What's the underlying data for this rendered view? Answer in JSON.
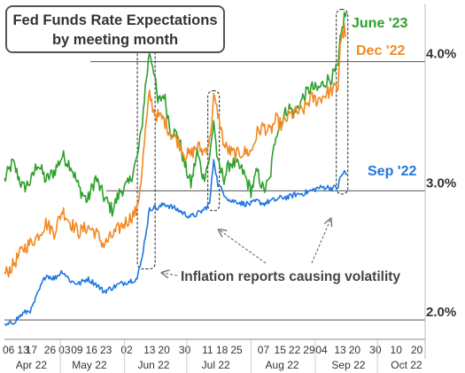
{
  "chart_data": {
    "type": "line",
    "title": "Fed Funds Rate Expectations",
    "subtitle": "by meeting month",
    "annotation": "Inflation reports causing volatility",
    "yticks": [
      "2.0%",
      "3.0%",
      "4.0%"
    ],
    "ylim": [
      1.85,
      4.45
    ],
    "xlim": [
      "2022-04-04",
      "2022-10-24"
    ],
    "x_tick_days": [
      "06",
      "13",
      "17",
      "26",
      "03",
      "09",
      "16",
      "23",
      "02",
      "13",
      "20",
      "30",
      "11",
      "18",
      "25",
      "07",
      "15",
      "22",
      "29",
      "04",
      "13",
      "20",
      "30",
      "10",
      "20"
    ],
    "x_tick_dates": [
      "2022-04-06",
      "2022-04-13",
      "2022-04-17",
      "2022-04-26",
      "2022-05-03",
      "2022-05-09",
      "2022-05-16",
      "2022-05-23",
      "2022-06-02",
      "2022-06-13",
      "2022-06-20",
      "2022-06-30",
      "2022-07-11",
      "2022-07-18",
      "2022-07-25",
      "2022-08-07",
      "2022-08-15",
      "2022-08-22",
      "2022-08-29",
      "2022-09-04",
      "2022-09-13",
      "2022-09-20",
      "2022-09-30",
      "2022-10-10",
      "2022-10-20"
    ],
    "month_labels": [
      "Apr 22",
      "May 22",
      "Jun 22",
      "Jul 22",
      "Aug 22",
      "Sep 22",
      "Oct 22"
    ],
    "month_label_dates": [
      "2022-04-17",
      "2022-05-15",
      "2022-06-15",
      "2022-07-15",
      "2022-08-16",
      "2022-09-17",
      "2022-10-15"
    ],
    "highlight_periods": [
      [
        "2022-06-08",
        "2022-06-14"
      ],
      [
        "2022-07-12",
        "2022-07-15"
      ],
      [
        "2022-09-12",
        "2022-09-15"
      ]
    ],
    "colors": {
      "grid": "#555555",
      "axis": "#888888",
      "tick": "#333333"
    },
    "series": [
      {
        "name": "June '23",
        "color": "#2ca02c",
        "points": [
          [
            "2022-04-04",
            3.08
          ],
          [
            "2022-04-08",
            3.22
          ],
          [
            "2022-04-13",
            3.02
          ],
          [
            "2022-04-17",
            3.08
          ],
          [
            "2022-04-20",
            3.22
          ],
          [
            "2022-04-24",
            3.08
          ],
          [
            "2022-04-28",
            3.15
          ],
          [
            "2022-05-02",
            3.27
          ],
          [
            "2022-05-06",
            3.2
          ],
          [
            "2022-05-10",
            3.02
          ],
          [
            "2022-05-14",
            2.92
          ],
          [
            "2022-05-18",
            3.1
          ],
          [
            "2022-05-22",
            2.95
          ],
          [
            "2022-05-26",
            2.85
          ],
          [
            "2022-05-30",
            3.0
          ],
          [
            "2022-06-03",
            3.05
          ],
          [
            "2022-06-07",
            3.25
          ],
          [
            "2022-06-09",
            3.45
          ],
          [
            "2022-06-11",
            3.8
          ],
          [
            "2022-06-13",
            4.08
          ],
          [
            "2022-06-15",
            3.95
          ],
          [
            "2022-06-17",
            3.68
          ],
          [
            "2022-06-20",
            3.75
          ],
          [
            "2022-06-23",
            3.48
          ],
          [
            "2022-06-27",
            3.42
          ],
          [
            "2022-06-30",
            3.2
          ],
          [
            "2022-07-03",
            3.05
          ],
          [
            "2022-07-06",
            3.3
          ],
          [
            "2022-07-09",
            3.1
          ],
          [
            "2022-07-12",
            3.25
          ],
          [
            "2022-07-14",
            3.55
          ],
          [
            "2022-07-16",
            3.2
          ],
          [
            "2022-07-19",
            3.1
          ],
          [
            "2022-07-22",
            3.22
          ],
          [
            "2022-07-25",
            3.2
          ],
          [
            "2022-07-28",
            3.15
          ],
          [
            "2022-08-01",
            3.0
          ],
          [
            "2022-08-04",
            3.15
          ],
          [
            "2022-08-07",
            3.0
          ],
          [
            "2022-08-10",
            3.08
          ],
          [
            "2022-08-13",
            3.45
          ],
          [
            "2022-08-16",
            3.55
          ],
          [
            "2022-08-19",
            3.65
          ],
          [
            "2022-08-22",
            3.6
          ],
          [
            "2022-08-26",
            3.72
          ],
          [
            "2022-08-30",
            3.8
          ],
          [
            "2022-09-02",
            3.78
          ],
          [
            "2022-09-06",
            3.85
          ],
          [
            "2022-09-09",
            3.88
          ],
          [
            "2022-09-12",
            3.95
          ],
          [
            "2022-09-13",
            4.15
          ],
          [
            "2022-09-15",
            4.35
          ],
          [
            "2022-09-16",
            4.38
          ]
        ]
      },
      {
        "name": "Dec '22",
        "color": "#f28a22",
        "points": [
          [
            "2022-04-04",
            2.35
          ],
          [
            "2022-04-08",
            2.42
          ],
          [
            "2022-04-13",
            2.55
          ],
          [
            "2022-04-17",
            2.6
          ],
          [
            "2022-04-20",
            2.65
          ],
          [
            "2022-04-24",
            2.75
          ],
          [
            "2022-04-28",
            2.68
          ],
          [
            "2022-05-02",
            2.85
          ],
          [
            "2022-05-06",
            2.75
          ],
          [
            "2022-05-10",
            2.68
          ],
          [
            "2022-05-14",
            2.72
          ],
          [
            "2022-05-18",
            2.68
          ],
          [
            "2022-05-22",
            2.58
          ],
          [
            "2022-05-26",
            2.65
          ],
          [
            "2022-05-30",
            2.72
          ],
          [
            "2022-06-03",
            2.78
          ],
          [
            "2022-06-07",
            2.85
          ],
          [
            "2022-06-09",
            3.1
          ],
          [
            "2022-06-11",
            3.45
          ],
          [
            "2022-06-13",
            3.75
          ],
          [
            "2022-06-15",
            3.62
          ],
          [
            "2022-06-17",
            3.58
          ],
          [
            "2022-06-20",
            3.55
          ],
          [
            "2022-06-23",
            3.45
          ],
          [
            "2022-06-27",
            3.38
          ],
          [
            "2022-06-30",
            3.28
          ],
          [
            "2022-07-03",
            3.28
          ],
          [
            "2022-07-06",
            3.35
          ],
          [
            "2022-07-09",
            3.3
          ],
          [
            "2022-07-12",
            3.38
          ],
          [
            "2022-07-14",
            3.72
          ],
          [
            "2022-07-16",
            3.6
          ],
          [
            "2022-07-19",
            3.35
          ],
          [
            "2022-07-22",
            3.3
          ],
          [
            "2022-07-25",
            3.28
          ],
          [
            "2022-07-28",
            3.3
          ],
          [
            "2022-08-01",
            3.3
          ],
          [
            "2022-08-04",
            3.45
          ],
          [
            "2022-08-07",
            3.5
          ],
          [
            "2022-08-10",
            3.45
          ],
          [
            "2022-08-13",
            3.55
          ],
          [
            "2022-08-16",
            3.5
          ],
          [
            "2022-08-19",
            3.58
          ],
          [
            "2022-08-22",
            3.6
          ],
          [
            "2022-08-26",
            3.62
          ],
          [
            "2022-08-30",
            3.72
          ],
          [
            "2022-09-02",
            3.7
          ],
          [
            "2022-09-06",
            3.75
          ],
          [
            "2022-09-09",
            3.78
          ],
          [
            "2022-09-12",
            3.8
          ],
          [
            "2022-09-13",
            4.15
          ],
          [
            "2022-09-15",
            4.25
          ],
          [
            "2022-09-16",
            4.2
          ]
        ]
      },
      {
        "name": "Sep '22",
        "color": "#1f77e0",
        "points": [
          [
            "2022-04-04",
            1.95
          ],
          [
            "2022-04-08",
            1.98
          ],
          [
            "2022-04-13",
            2.05
          ],
          [
            "2022-04-17",
            2.08
          ],
          [
            "2022-04-20",
            2.2
          ],
          [
            "2022-04-24",
            2.35
          ],
          [
            "2022-04-28",
            2.32
          ],
          [
            "2022-05-02",
            2.38
          ],
          [
            "2022-05-06",
            2.3
          ],
          [
            "2022-05-10",
            2.28
          ],
          [
            "2022-05-14",
            2.32
          ],
          [
            "2022-05-18",
            2.28
          ],
          [
            "2022-05-22",
            2.22
          ],
          [
            "2022-05-26",
            2.25
          ],
          [
            "2022-05-30",
            2.28
          ],
          [
            "2022-06-03",
            2.3
          ],
          [
            "2022-06-07",
            2.32
          ],
          [
            "2022-06-09",
            2.45
          ],
          [
            "2022-06-11",
            2.65
          ],
          [
            "2022-06-13",
            2.85
          ],
          [
            "2022-06-15",
            2.88
          ],
          [
            "2022-06-17",
            2.86
          ],
          [
            "2022-06-20",
            2.9
          ],
          [
            "2022-06-23",
            2.88
          ],
          [
            "2022-06-27",
            2.85
          ],
          [
            "2022-06-30",
            2.82
          ],
          [
            "2022-07-03",
            2.8
          ],
          [
            "2022-07-06",
            2.82
          ],
          [
            "2022-07-09",
            2.85
          ],
          [
            "2022-07-12",
            2.9
          ],
          [
            "2022-07-14",
            3.25
          ],
          [
            "2022-07-16",
            3.05
          ],
          [
            "2022-07-19",
            2.98
          ],
          [
            "2022-07-22",
            2.92
          ],
          [
            "2022-07-25",
            2.92
          ],
          [
            "2022-07-28",
            2.9
          ],
          [
            "2022-08-01",
            2.9
          ],
          [
            "2022-08-04",
            2.92
          ],
          [
            "2022-08-07",
            2.9
          ],
          [
            "2022-08-10",
            2.92
          ],
          [
            "2022-08-13",
            2.93
          ],
          [
            "2022-08-16",
            2.95
          ],
          [
            "2022-08-19",
            2.95
          ],
          [
            "2022-08-22",
            2.97
          ],
          [
            "2022-08-26",
            2.98
          ],
          [
            "2022-08-30",
            3.0
          ],
          [
            "2022-09-02",
            3.02
          ],
          [
            "2022-09-06",
            3.03
          ],
          [
            "2022-09-09",
            3.02
          ],
          [
            "2022-09-12",
            3.03
          ],
          [
            "2022-09-13",
            3.1
          ],
          [
            "2022-09-15",
            3.15
          ],
          [
            "2022-09-16",
            3.12
          ]
        ]
      }
    ]
  }
}
